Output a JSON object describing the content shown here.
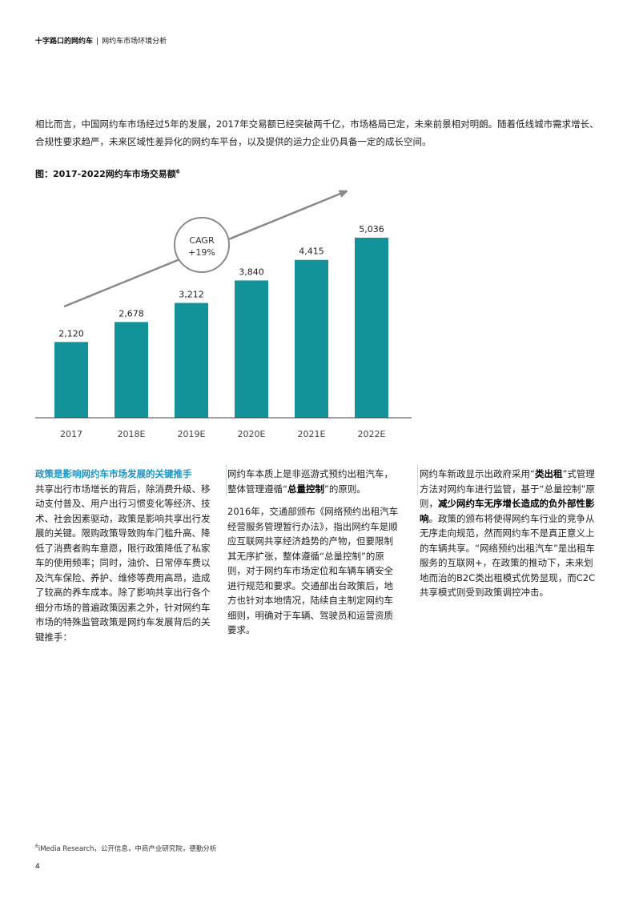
{
  "header": {
    "title": "十字路口的网约车",
    "separator": "|",
    "subtitle": "网约车市场环境分析"
  },
  "intro": "相比而言，中国网约车市场经过5年的发展，2017年交易额已经突破两千亿，市场格局已定，未来前景相对明朗。随着低线城市需求增长、合规性要求趋严，未来区域性差异化的网约车平台，以及提供的运力企业仍具备一定的成长空间。",
  "figure": {
    "title": "图：2017-2022网约车市场交易额",
    "note_mark": "6"
  },
  "chart_data": {
    "type": "bar",
    "categories": [
      "2017",
      "2018E",
      "2019E",
      "2020E",
      "2021E",
      "2022E"
    ],
    "values": [
      2120,
      2678,
      3212,
      3840,
      4415,
      5036
    ],
    "value_labels": [
      "2,120",
      "2,678",
      "3,212",
      "3,840",
      "4,415",
      "5,036"
    ],
    "ylim": [
      0,
      5036
    ],
    "annotation": {
      "line1": "CAGR",
      "line2": "+19%"
    },
    "bar_color": "#13929a",
    "grid": false,
    "title": "",
    "xlabel": "",
    "ylabel": ""
  },
  "columns": {
    "col1": {
      "lead": "政策是影响网约车市场发展的关键推手",
      "body": "共享出行市场增长的背后，除消费升级、移动支付普及、用户出行习惯变化等经济、技术、社会因素驱动，政策是影响共享出行发展的关键。限购政策导致购车门槛升高、降低了消费者购车意愿，限行政策降低了私家车的使用频率；同时，油价、日常停车费以及汽车保险、养护、维修等费用高昂，造成了较高的养车成本。除了影响共享出行各个细分市场的普遍政策因素之外，针对网约车市场的特殊监管政策是网约车发展背后的关键推手："
    },
    "col2": {
      "p1_a": "网约车本质上是非巡游式预约出租汽车，整体管理遵循“",
      "p1_b": "总量控制",
      "p1_c": "”的原则。",
      "p2": "2016年，交通部颁布《网络预约出租汽车经营服务管理暂行办法》，指出网约车是顺应互联网共享经济趋势的产物，但要限制其无序扩张，整体遵循“总量控制”的原则，对于网约车市场定位和车辆车辆安全进行规范和要求。交通部出台政策后，地方也针对本地情况，陆续自主制定网约车细则，明确对于车辆、驾驶员和运营资质要求。"
    },
    "col3": {
      "a": "网约车新政显示出政府采用“",
      "b": "类出租",
      "c": "”式管理方法对网约车进行监管，基于“总量控制”原则，",
      "d": "减少网约车无序增长造成的负外部性影响",
      "e": "。政策的颁布将使得网约车行业的竞争从无序走向规范，然而网约车不是真正意义上的车辆共享。“网络预约出租汽车”是出租车服务的互联网+，在政策的推动下，未来划地而治的B2C类出租模式优势显现，而C2C共享模式则受到政策调控冲击。"
    }
  },
  "footnote": {
    "mark": "6",
    "text": "iMedia Research，公开信息，中商产业研究院，德勤分析"
  },
  "page_number": "4"
}
